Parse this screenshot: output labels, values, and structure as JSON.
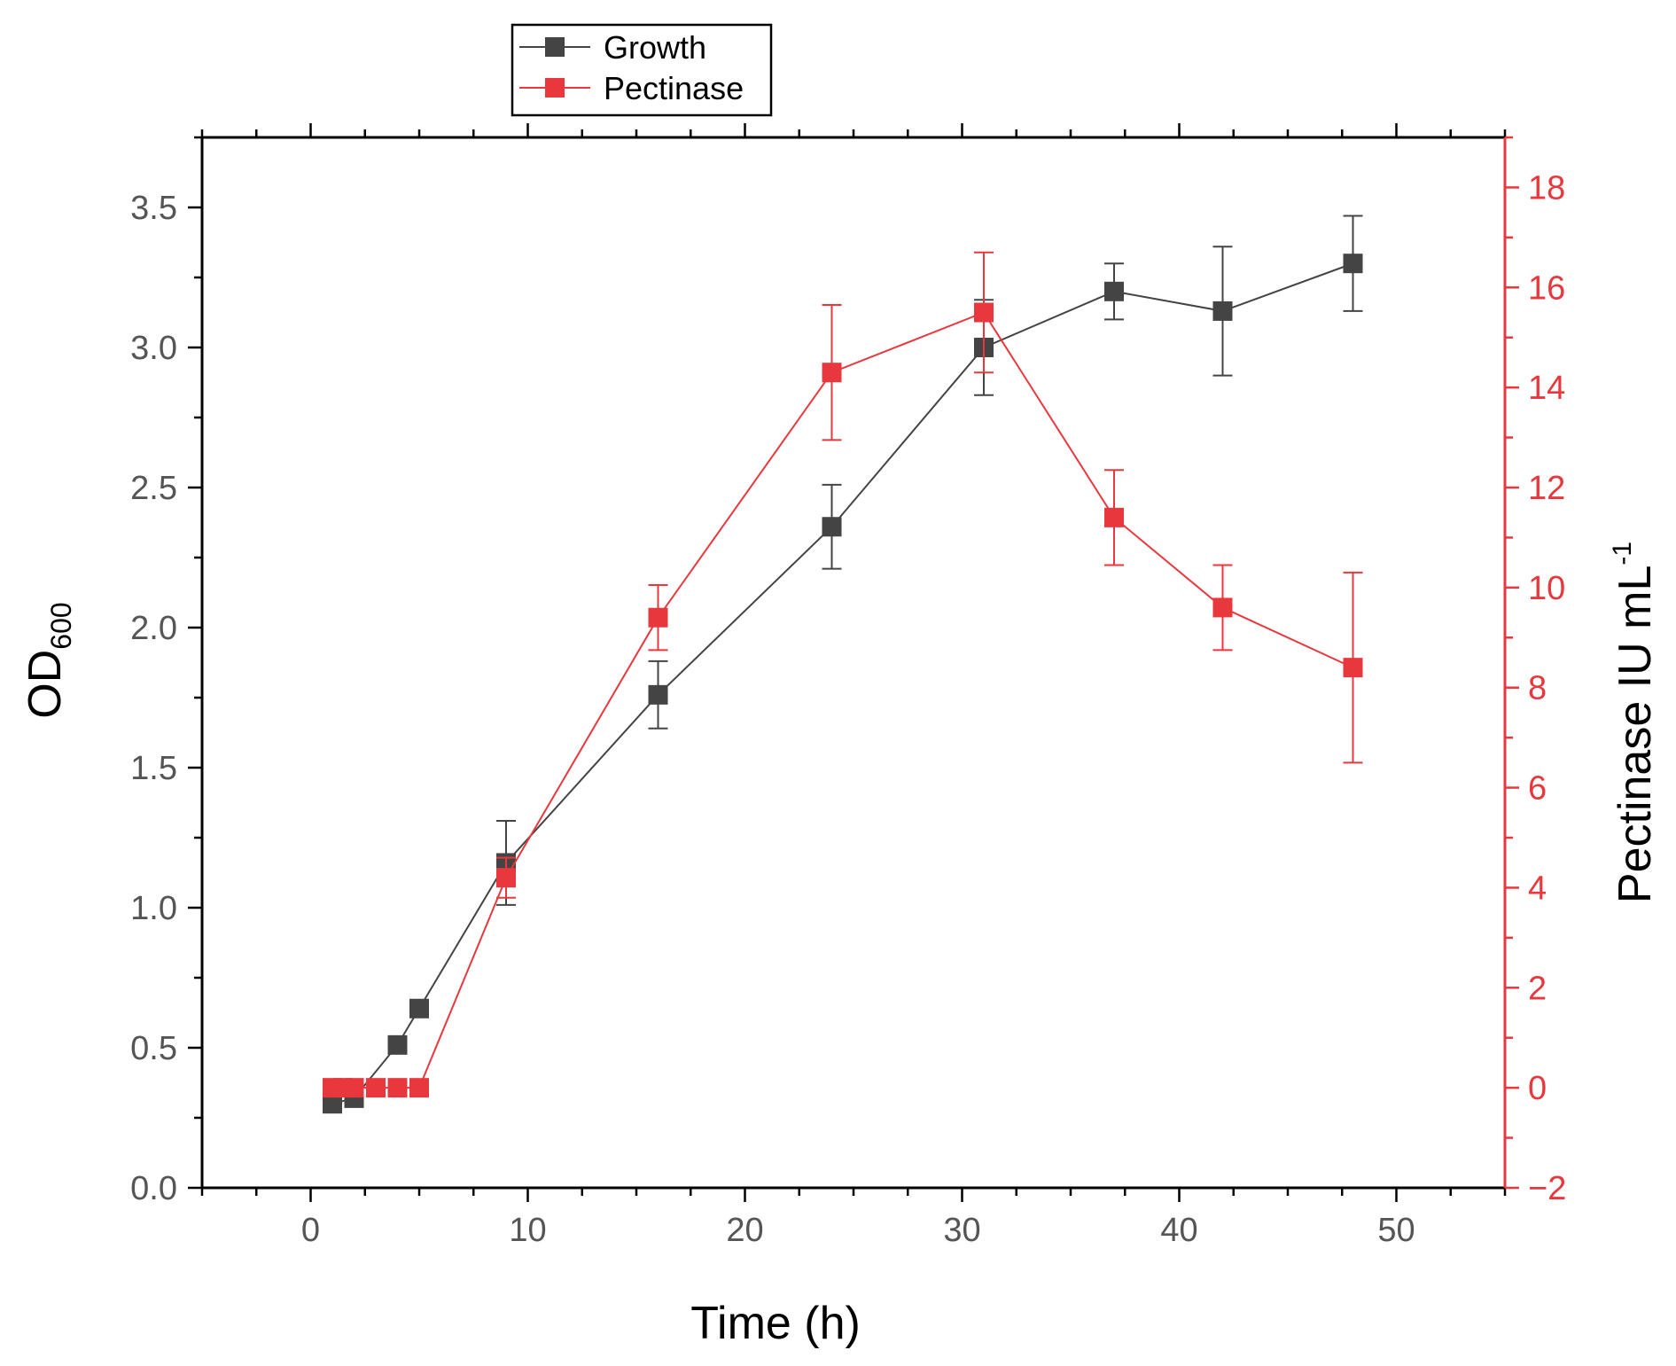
{
  "chart_data": {
    "type": "line",
    "title": "",
    "xlabel": "Time (h)",
    "ylabel": {
      "base": "OD",
      "sub": "600"
    },
    "y2label": {
      "base": "Pectinase IU mL",
      "sup": "-1"
    },
    "xlim": [
      -5,
      55
    ],
    "ylim": [
      0,
      3.75
    ],
    "y2lim": [
      -2,
      19
    ],
    "xticks": [
      0,
      10,
      20,
      30,
      40,
      50
    ],
    "yticks": [
      0.0,
      0.5,
      1.0,
      1.5,
      2.0,
      2.5,
      3.0,
      3.5
    ],
    "ytick_labels": [
      "0.0",
      "0.5",
      "1.0",
      "1.5",
      "2.0",
      "2.5",
      "3.0",
      "3.5"
    ],
    "y2ticks": [
      -2,
      0,
      2,
      4,
      6,
      8,
      10,
      12,
      14,
      16,
      18
    ],
    "y2tick_labels": [
      "−2",
      "0",
      "2",
      "4",
      "6",
      "8",
      "10",
      "12",
      "14",
      "16",
      "18"
    ],
    "legend_position": "top-left outside",
    "series": [
      {
        "name": "Growth",
        "axis": "left",
        "color": "#444444",
        "x": [
          1,
          2,
          4,
          5,
          9,
          16,
          24,
          31,
          37,
          42,
          48
        ],
        "y": [
          0.3,
          0.32,
          0.51,
          0.64,
          1.16,
          1.76,
          2.36,
          3.0,
          3.2,
          3.13,
          3.3
        ],
        "err": [
          0,
          0,
          0,
          0,
          0.15,
          0.12,
          0.15,
          0.17,
          0.1,
          0.23,
          0.17
        ]
      },
      {
        "name": "Pectinase",
        "axis": "right",
        "color": "#e8383d",
        "x": [
          1,
          1.5,
          2,
          3,
          4,
          5,
          9,
          16,
          24,
          31,
          37,
          42,
          48
        ],
        "y": [
          0,
          0,
          0,
          0,
          0,
          0,
          4.2,
          9.4,
          14.3,
          15.5,
          11.4,
          9.6,
          8.4
        ],
        "err": [
          0,
          0,
          0,
          0,
          0,
          0,
          0.4,
          0.65,
          1.35,
          1.2,
          0.95,
          0.85,
          1.9
        ]
      }
    ]
  },
  "colors": {
    "axis": "#000000",
    "right_axis": "#e8383d",
    "tick_text": "#555555"
  }
}
